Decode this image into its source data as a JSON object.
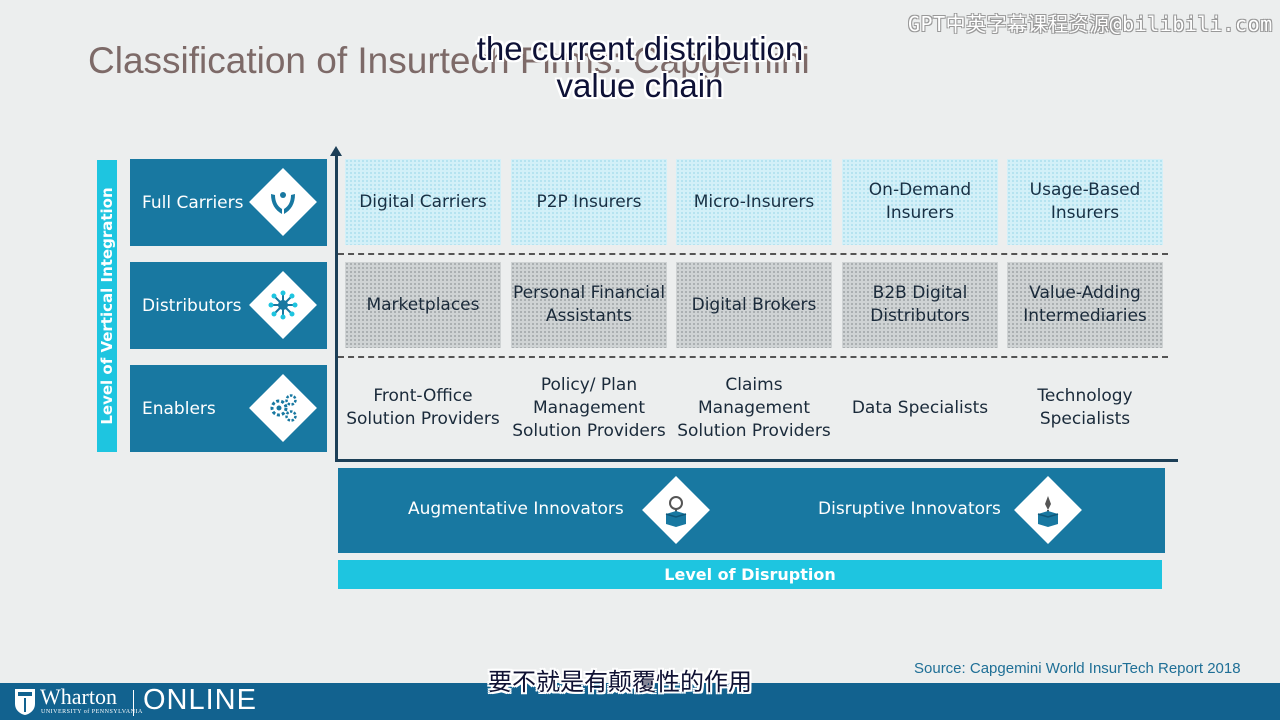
{
  "slide": {
    "title": "Classification of Insurtech Firms: Capgemini",
    "caption_top": "the current distribution value chain",
    "watermark": "GPT中英字幕课程资源@bilibili.com",
    "subtitle_cn": "要不就是有颠覆性的作用",
    "source": "Source:  Capgemini World InsurTech Report 2018"
  },
  "diagram": {
    "y_axis_label": "Level of Vertical Integration",
    "x_axis_label": "Level of Disruption",
    "rows": [
      {
        "label": "Full Carriers",
        "icon": "hands-icon",
        "cells": [
          "Digital Carriers",
          "P2P Insurers",
          "Micro-Insurers",
          "On-Demand Insurers",
          "Usage-Based Insurers"
        ]
      },
      {
        "label": "Distributors",
        "icon": "network-icon",
        "cells": [
          "Marketplaces",
          "Personal Financial Assistants",
          "Digital Brokers",
          "B2B Digital Distributors",
          "Value-Adding Intermediaries"
        ]
      },
      {
        "label": "Enablers",
        "icon": "gears-icon",
        "cells": [
          "Front-Office Solution Providers",
          "Policy/ Plan Management Solution Providers",
          "Claims Management Solution Providers",
          "Data Specialists",
          "Technology Specialists"
        ]
      }
    ],
    "innovators": {
      "augmentative": "Augmentative Innovators",
      "augmentative_icon": "box-bulb-icon",
      "disruptive": "Disruptive Innovators",
      "disruptive_icon": "box-rocket-icon"
    }
  },
  "footer": {
    "brand": "Wharton",
    "university": "UNIVERSITY of PENNSYLVANIA",
    "online": "ONLINE"
  },
  "colors": {
    "accent_blue": "#1878a1",
    "accent_cyan": "#1ec5e0",
    "footer_blue": "#12628f"
  }
}
